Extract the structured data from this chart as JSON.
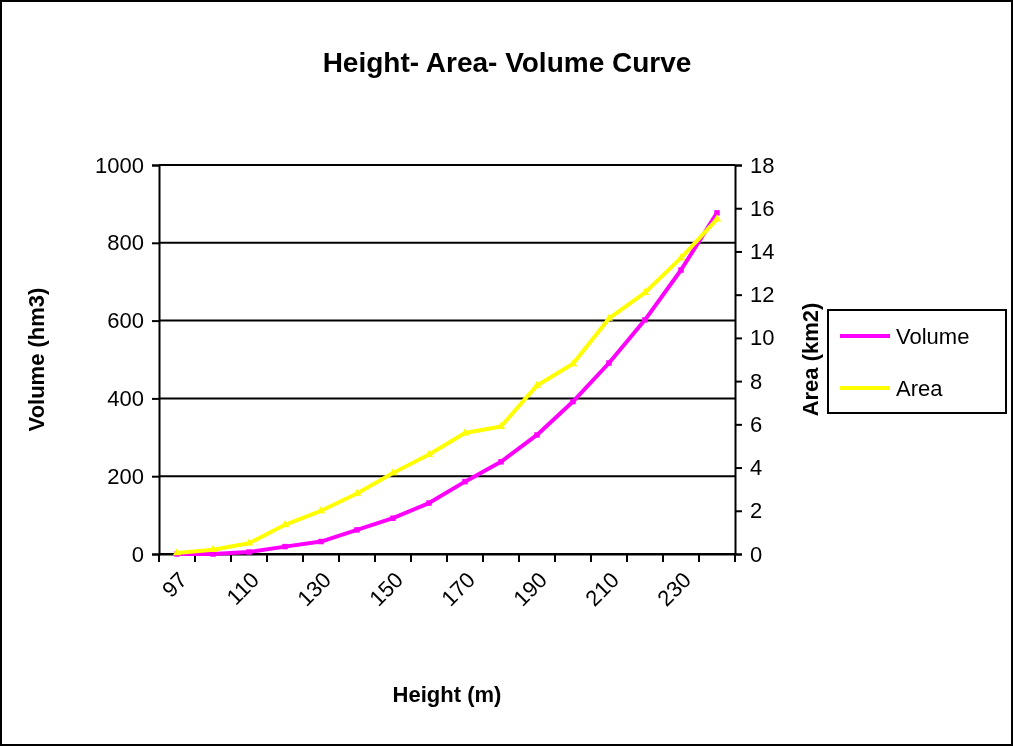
{
  "chart_data": {
    "type": "line",
    "title": "Height- Area- Volume Curve",
    "xlabel": "Height (m)",
    "ylabel": "Volume (hm3)",
    "y2label": "Area (km2)",
    "categories": [
      "97",
      null,
      "110",
      null,
      "130",
      null,
      "150",
      null,
      "170",
      null,
      "190",
      null,
      "210",
      null,
      "230",
      null
    ],
    "series": [
      {
        "name": "Volume",
        "color": "#ff00ff",
        "marker": "square",
        "values": [
          0,
          0,
          5,
          19,
          32,
          62,
          92,
          131,
          186,
          237,
          306,
          392,
          491,
          602,
          730,
          877
        ]
      },
      {
        "name": "Area",
        "color": "#ffff00",
        "marker": "triangle",
        "axis": "y2",
        "values": [
          0.05,
          0.2,
          0.5,
          1.35,
          2.0,
          2.8,
          3.75,
          4.6,
          5.6,
          5.9,
          7.8,
          8.8,
          10.9,
          12.1,
          13.7,
          15.5
        ]
      }
    ],
    "ylim": [
      0,
      1000
    ],
    "yticks": [
      0,
      200,
      400,
      600,
      800,
      1000
    ],
    "y2lim": [
      0,
      18
    ],
    "y2ticks": [
      0,
      2,
      4,
      6,
      8,
      10,
      12,
      14,
      16,
      18
    ],
    "grid": "y",
    "legend": "right"
  }
}
